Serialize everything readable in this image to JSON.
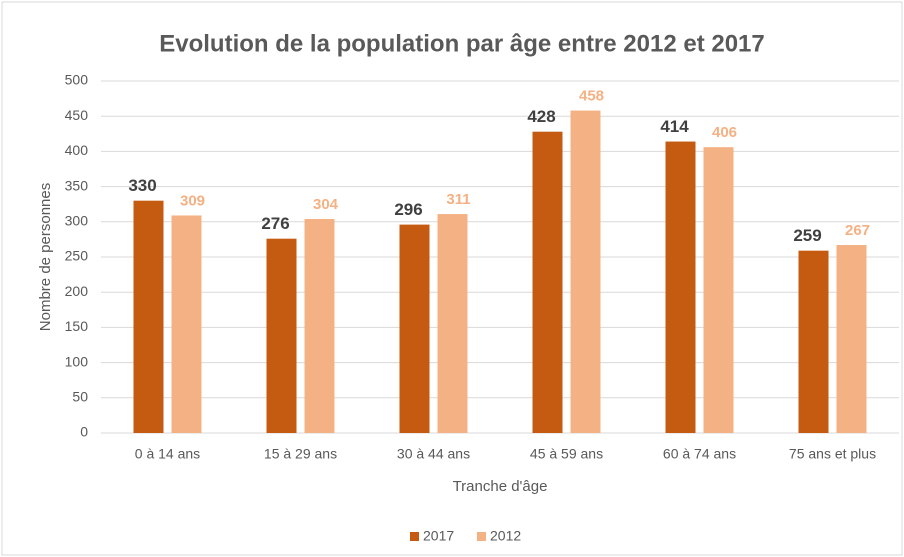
{
  "chart_data": {
    "type": "bar",
    "title": "Evolution de la population par âge entre 2012 et 2017",
    "x_label": "Tranche d'âge",
    "y_label": "Nombre de personnes",
    "categories": [
      "0 à 14 ans",
      "15 à 29 ans",
      "30 à 44 ans",
      "45 à 59 ans",
      "60 à 74 ans",
      "75 ans et plus"
    ],
    "series": [
      {
        "name": "2017",
        "color": "#c55a11",
        "label_color": "#404040",
        "values": [
          330,
          276,
          296,
          428,
          414,
          259
        ]
      },
      {
        "name": "2012",
        "color": "#f4b183",
        "label_color": "#f4b183",
        "values": [
          309,
          304,
          311,
          458,
          406,
          267
        ]
      }
    ],
    "ylim": [
      0,
      500
    ],
    "yticks": [
      0,
      50,
      100,
      150,
      200,
      250,
      300,
      350,
      400,
      450,
      500
    ],
    "grid": true,
    "legend": "bottom"
  }
}
